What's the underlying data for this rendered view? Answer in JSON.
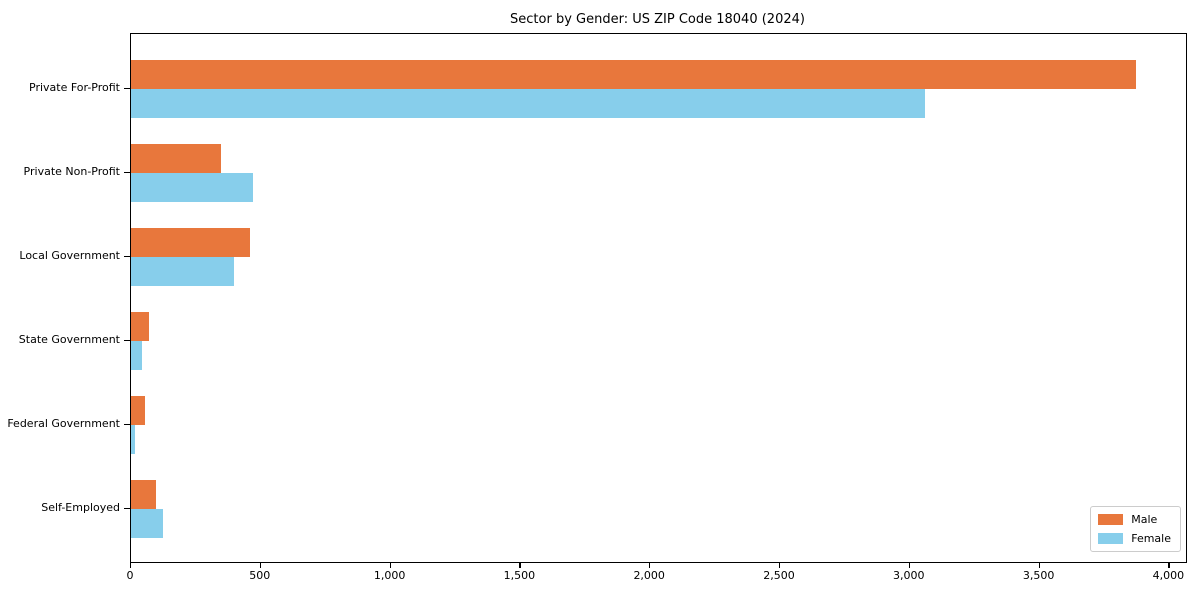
{
  "chart_data": {
    "type": "bar",
    "orientation": "horizontal",
    "title": "Sector by Gender: US ZIP Code 18040 (2024)",
    "categories": [
      "Private For-Profit",
      "Private Non-Profit",
      "Local Government",
      "State Government",
      "Federal Government",
      "Self-Employed"
    ],
    "series": [
      {
        "name": "Male",
        "color": "#E8773C",
        "values": [
          3870,
          345,
          460,
          68,
          54,
          96
        ]
      },
      {
        "name": "Female",
        "color": "#87CEEB",
        "values": [
          3060,
          470,
          395,
          42,
          15,
          123
        ]
      }
    ],
    "xlabel": "",
    "ylabel": "",
    "xlim": [
      0,
      4064
    ],
    "xticks": [
      0,
      500,
      1000,
      1500,
      2000,
      2500,
      3000,
      3500,
      4000
    ],
    "xtick_labels": [
      "0",
      "500",
      "1,000",
      "1,500",
      "2,000",
      "2,500",
      "3,000",
      "3,500",
      "4,000"
    ],
    "grid": false,
    "legend_position": "lower right"
  }
}
